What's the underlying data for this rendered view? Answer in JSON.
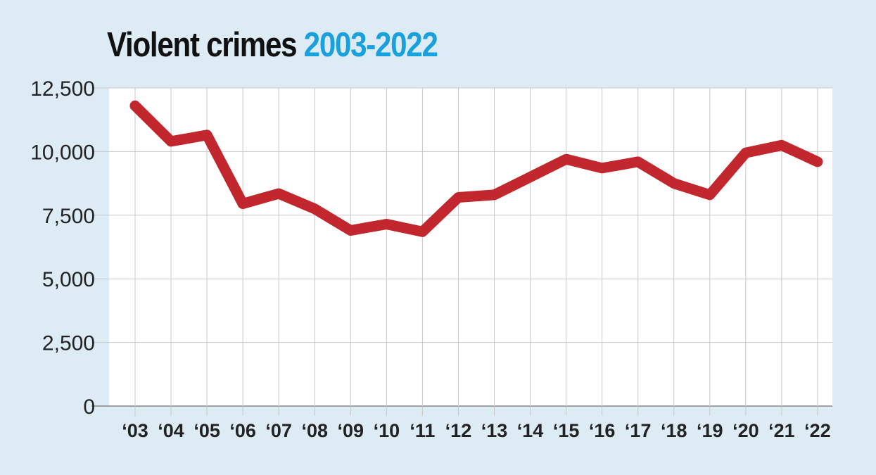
{
  "title": {
    "main": "Violent crimes",
    "years": "2003-2022"
  },
  "colors": {
    "background": "#ddebf5",
    "plot_area": "#ffffff",
    "line": "#c1272d",
    "title_accent": "#1aa0dc",
    "grid": "#c8c8c8"
  },
  "chart_data": {
    "type": "line",
    "title": "Violent crimes 2003-2022",
    "categories": [
      "‘03",
      "‘04",
      "‘05",
      "‘06",
      "‘07",
      "‘08",
      "‘09",
      "‘10",
      "‘11",
      "‘12",
      "‘13",
      "‘14",
      "‘15",
      "‘16",
      "‘17",
      "‘18",
      "‘19",
      "‘20",
      "‘21",
      "‘22"
    ],
    "series": [
      {
        "values": [
          11800,
          10400,
          10650,
          7950,
          8350,
          7750,
          6900,
          7150,
          6850,
          8200,
          8300,
          9000,
          9700,
          9350,
          9600,
          8750,
          8300,
          9950,
          10250,
          9600
        ]
      }
    ],
    "ylim": [
      0,
      12500
    ],
    "yticks": [
      0,
      2500,
      5000,
      7500,
      10000,
      12500
    ],
    "ytick_labels": [
      "0",
      "2,500",
      "5,000",
      "7,500",
      "10,000",
      "12,500"
    ],
    "xlabel": "",
    "ylabel": "",
    "grid": true,
    "legend": "none"
  }
}
